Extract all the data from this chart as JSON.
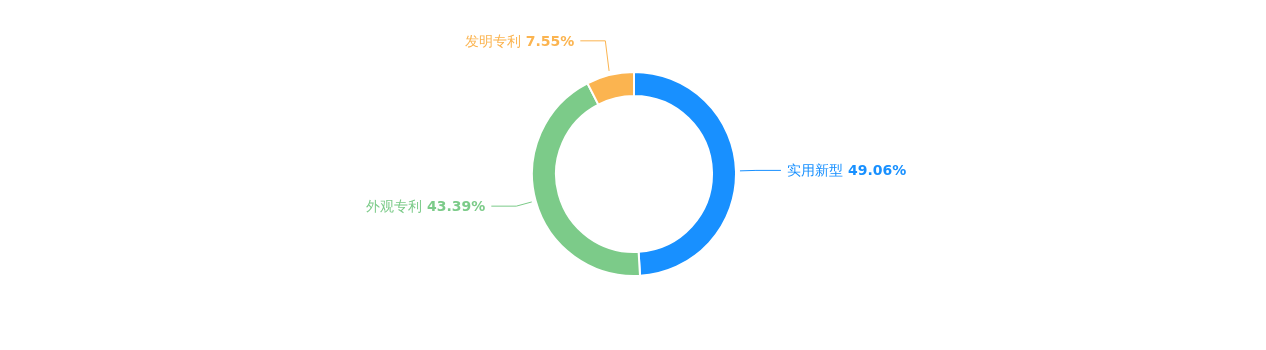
{
  "chart_data": {
    "type": "donut",
    "categories": [
      "实用新型",
      "外观专利",
      "发明专利"
    ],
    "values": [
      49.06,
      43.39,
      7.55
    ],
    "value_labels": [
      "49.06%",
      "43.39%",
      "7.55%"
    ],
    "colors": [
      "#1890ff",
      "#7ccb89",
      "#fbb450"
    ]
  }
}
